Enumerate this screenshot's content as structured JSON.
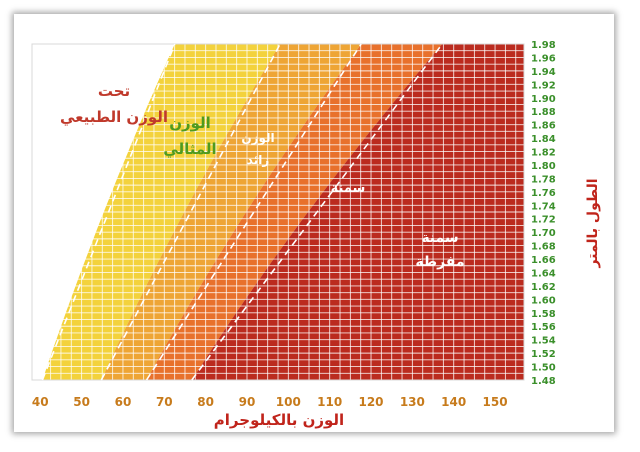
{
  "chart_data": {
    "type": "area",
    "title": "",
    "xlabel": "الوزن بالكيلوجرام",
    "ylabel": "الطول بالمتر",
    "x_ticks": [
      40,
      50,
      60,
      70,
      80,
      90,
      100,
      110,
      120,
      130,
      140,
      150
    ],
    "y_ticks": [
      "1.48",
      "1.50",
      "1.52",
      "1.54",
      "1.56",
      "1.58",
      "1.60",
      "1.62",
      "1.64",
      "1.66",
      "1.68",
      "1.70",
      "1.72",
      "1.74",
      "1.76",
      "1.78",
      "1.80",
      "1.82",
      "1.84",
      "1.86",
      "1.88",
      "1.90",
      "1.92",
      "1.94",
      "1.96",
      "1.98"
    ],
    "xlim": [
      38,
      157
    ],
    "ylim": [
      1.48,
      1.98
    ],
    "grid": true,
    "bmi_boundaries": [
      18.5,
      25,
      30,
      35
    ],
    "zones": [
      {
        "label": "تحت الوزن الطبيعي",
        "bmi_range": [
          0,
          18.5
        ],
        "color": "#ffffff",
        "text_color": "#c0392b"
      },
      {
        "label": "الوزن المثالي",
        "bmi_range": [
          18.5,
          25
        ],
        "color": "#f3d23c",
        "text_color": "#4f9a1f"
      },
      {
        "label": "الوزن زائد",
        "bmi_range": [
          25,
          30
        ],
        "color": "#eea535",
        "text_color": "#ffffff"
      },
      {
        "label": "سمنة",
        "bmi_range": [
          30,
          35
        ],
        "color": "#e8712c",
        "text_color": "#ffffff"
      },
      {
        "label": "سمنة مفرطة",
        "bmi_range": [
          35,
          100
        ],
        "color": "#bb2b1f",
        "text_color": "#ffffff"
      }
    ],
    "colors": {
      "x_tick_label": "#c77b1c",
      "y_tick_label": "#3a8f2a",
      "axis_title": "#c0241b",
      "grid": "#ffffff",
      "boundary_dash": "#ffffff"
    }
  }
}
